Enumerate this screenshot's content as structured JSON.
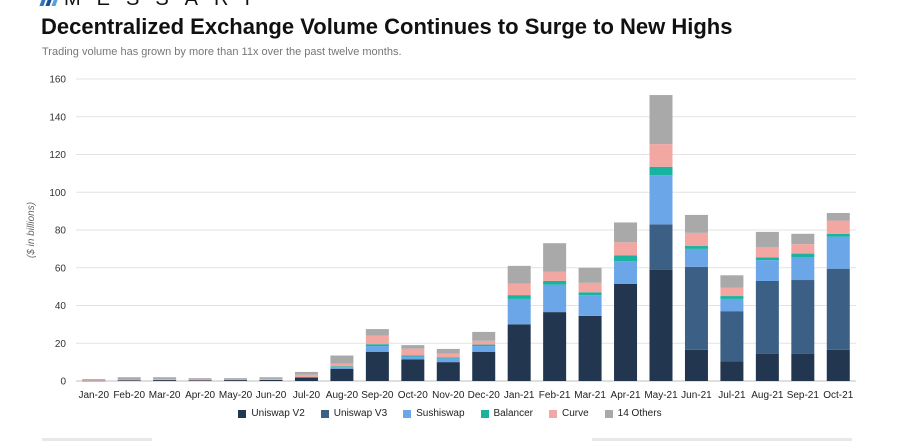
{
  "brand": {
    "name": "MESSARI"
  },
  "header": {
    "title": "Decentralized Exchange Volume Continues to Surge to New Highs",
    "subtitle": "Trading volume has grown by more than 11x over the past twelve months."
  },
  "colors": {
    "Uniswap V2": "#22364f",
    "Uniswap V3": "#3c5f86",
    "Sushiswap": "#6aa6e8",
    "Balancer": "#19b3a0",
    "Curve": "#f2a7a3",
    "14 Others": "#a9a9a9"
  },
  "chart_data": {
    "type": "bar",
    "stacked": true,
    "ylabel": "($ in billions)",
    "xlabel": "",
    "ylim": [
      0,
      160
    ],
    "yticks": [
      0,
      20,
      40,
      60,
      80,
      100,
      120,
      140,
      160
    ],
    "grid": true,
    "legend_position": "bottom",
    "categories": [
      "Jan-20",
      "Feb-20",
      "Mar-20",
      "Apr-20",
      "May-20",
      "Jun-20",
      "Jul-20",
      "Aug-20",
      "Sep-20",
      "Oct-20",
      "Nov-20",
      "Dec-20",
      "Jan-21",
      "Feb-21",
      "Mar-21",
      "Apr-21",
      "May-21",
      "Jun-21",
      "Jul-21",
      "Aug-21",
      "Sep-21",
      "Oct-21"
    ],
    "series": [
      {
        "name": "Uniswap V2",
        "values": [
          0.2,
          0.4,
          0.5,
          0.4,
          0.5,
          0.6,
          1.8,
          6.5,
          15.5,
          11.5,
          10,
          15.5,
          30,
          36.5,
          34.5,
          51.5,
          59,
          16.5,
          10.5,
          14.5,
          14.5,
          16.5
        ]
      },
      {
        "name": "Uniswap V3",
        "values": [
          0,
          0,
          0,
          0,
          0,
          0,
          0,
          0,
          0,
          0,
          0,
          0,
          0,
          0,
          0,
          0,
          24,
          44,
          26.5,
          38.5,
          39,
          43
        ]
      },
      {
        "name": "Sushiswap",
        "values": [
          0,
          0,
          0,
          0,
          0,
          0,
          0,
          0.8,
          3,
          1.5,
          2,
          3,
          13.5,
          14.5,
          11,
          12,
          26,
          9.5,
          6.5,
          11,
          12,
          17
        ]
      },
      {
        "name": "Balancer",
        "values": [
          0,
          0,
          0,
          0,
          0,
          0,
          0.3,
          0.5,
          1,
          0.6,
          0.5,
          0.8,
          2,
          2,
          1.5,
          3,
          4.5,
          1.5,
          1.5,
          1.5,
          2,
          1.5
        ]
      },
      {
        "name": "Curve",
        "values": [
          0.2,
          0.4,
          0.5,
          0.3,
          0.3,
          0.5,
          1.2,
          1.5,
          4.5,
          3.5,
          2,
          2,
          6,
          5,
          5,
          7,
          12,
          7,
          4.5,
          5.5,
          5,
          7
        ]
      },
      {
        "name": "14 Others",
        "values": [
          0.6,
          1.2,
          1,
          0.8,
          0.7,
          0.9,
          1.5,
          4.2,
          3.5,
          1.9,
          2.5,
          4.7,
          9.5,
          15,
          8,
          10.5,
          26,
          9.5,
          6.5,
          8,
          5.5,
          4
        ]
      }
    ]
  }
}
